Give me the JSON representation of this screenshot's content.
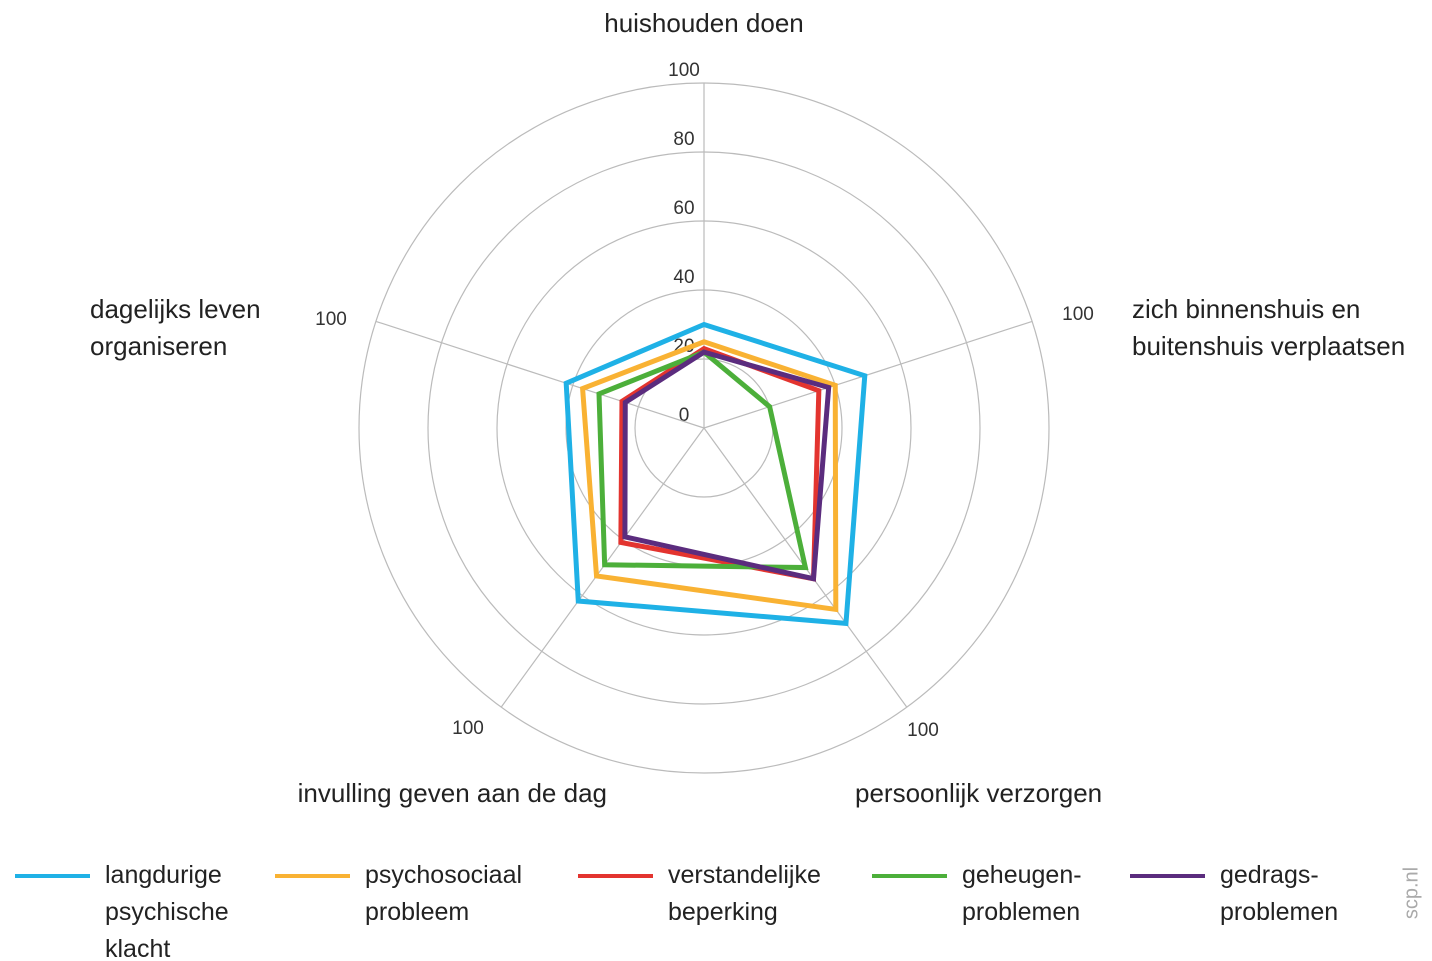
{
  "chart_data": {
    "type": "radar",
    "categories": [
      "huishouden doen",
      "zich binnenshuis en\nbuitenshuis verplaatsen",
      "persoonlijk verzorgen",
      "invulling geven aan de dag",
      "dagelijks leven\norganiseren"
    ],
    "ylim": [
      0,
      100
    ],
    "yticks": [
      0,
      20,
      40,
      60,
      80,
      100
    ],
    "grid": true,
    "series": [
      {
        "name": "langdurige\npsychische\nklacht",
        "color": "#1fb1e6",
        "values": [
          30,
          49,
          70,
          62,
          42
        ]
      },
      {
        "name": "psychosociaal\nprobleem",
        "color": "#f9b233",
        "values": [
          25,
          40,
          65,
          53,
          37
        ]
      },
      {
        "name": "verstandelijke\nbeperking",
        "color": "#e3342f",
        "values": [
          23,
          35,
          54,
          41,
          25
        ]
      },
      {
        "name": "geheugen-\nproblemen",
        "color": "#4caf3a",
        "values": [
          22,
          20,
          50,
          49,
          32
        ]
      },
      {
        "name": "gedrags-\nproblemen",
        "color": "#5b2c7e",
        "values": [
          22,
          38,
          54,
          39,
          24
        ]
      }
    ],
    "watermark": "scp.nl"
  }
}
